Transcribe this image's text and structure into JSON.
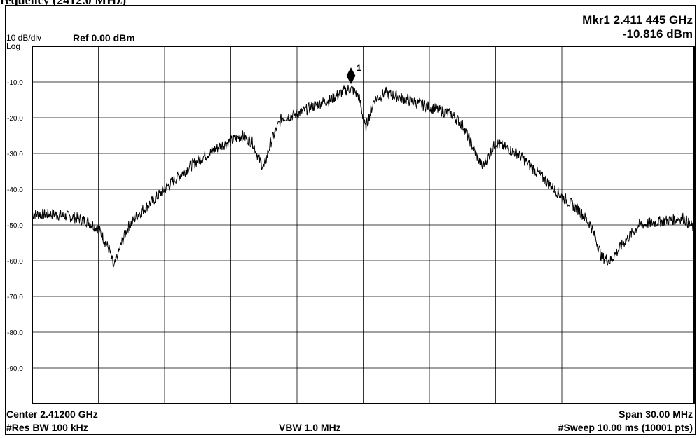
{
  "caption": "requency (2412.0 MHz)",
  "header": {
    "scale": "10 dB/div",
    "scale_type": "Log",
    "ref_level": "Ref 0.00 dBm",
    "marker_freq": "Mkr1 2.411 445 GHz",
    "marker_level": "-10.816 dBm"
  },
  "footer": {
    "center": "Center 2.41200 GHz",
    "span": "Span 30.00 MHz",
    "rbw": "#Res BW 100 kHz",
    "vbw": "VBW 1.0 MHz",
    "sweep": "#Sweep  10.00 ms (10001 pts)"
  },
  "chart_data": {
    "type": "line",
    "xlabel": "",
    "ylabel": "",
    "xlim": [
      2397,
      2427
    ],
    "ylim": [
      -100,
      0
    ],
    "ytick_labels": [
      "-10.0",
      "-20.0",
      "-30.0",
      "-40.0",
      "-50.0",
      "-60.0",
      "-70.0",
      "-80.0",
      "-90.0"
    ],
    "ytick_values": [
      -10,
      -20,
      -30,
      -40,
      -50,
      -60,
      -70,
      -80,
      -90
    ],
    "grid": true,
    "marker": {
      "label": "1",
      "x": 2411.445,
      "y": -10.816
    },
    "series": [
      {
        "x": [
          2397.0,
          2398.0,
          2399.0,
          2399.5,
          2400.0,
          2400.5,
          2400.7,
          2401.0,
          2401.3,
          2401.8,
          2402.5,
          2403.5,
          2404.5,
          2405.5,
          2406.5,
          2407.0,
          2407.3,
          2407.5,
          2407.8,
          2408.3,
          2409.0,
          2410.0,
          2410.5,
          2411.0,
          2411.3,
          2411.5,
          2411.8,
          2412.1,
          2412.5,
          2413.0,
          2414.0,
          2415.0,
          2416.0,
          2416.5,
          2416.8,
          2417.1,
          2417.4,
          2418.0,
          2419.0,
          2420.0,
          2421.0,
          2421.8,
          2422.3,
          2422.6,
          2422.8,
          2423.2,
          2423.8,
          2424.5,
          2425.5,
          2426.5,
          2427.0
        ],
        "y": [
          -47,
          -47,
          -48,
          -49,
          -51,
          -57,
          -62,
          -56,
          -51,
          -47,
          -43,
          -37,
          -32,
          -28,
          -25,
          -27,
          -32,
          -34,
          -27,
          -20,
          -19,
          -16,
          -15,
          -13,
          -12,
          -12,
          -14,
          -23,
          -15,
          -13,
          -15,
          -17,
          -19,
          -22,
          -26,
          -30,
          -34,
          -27,
          -30,
          -36,
          -42,
          -46,
          -50,
          -55,
          -59,
          -60,
          -55,
          -50,
          -49,
          -48,
          -51
        ]
      }
    ]
  }
}
